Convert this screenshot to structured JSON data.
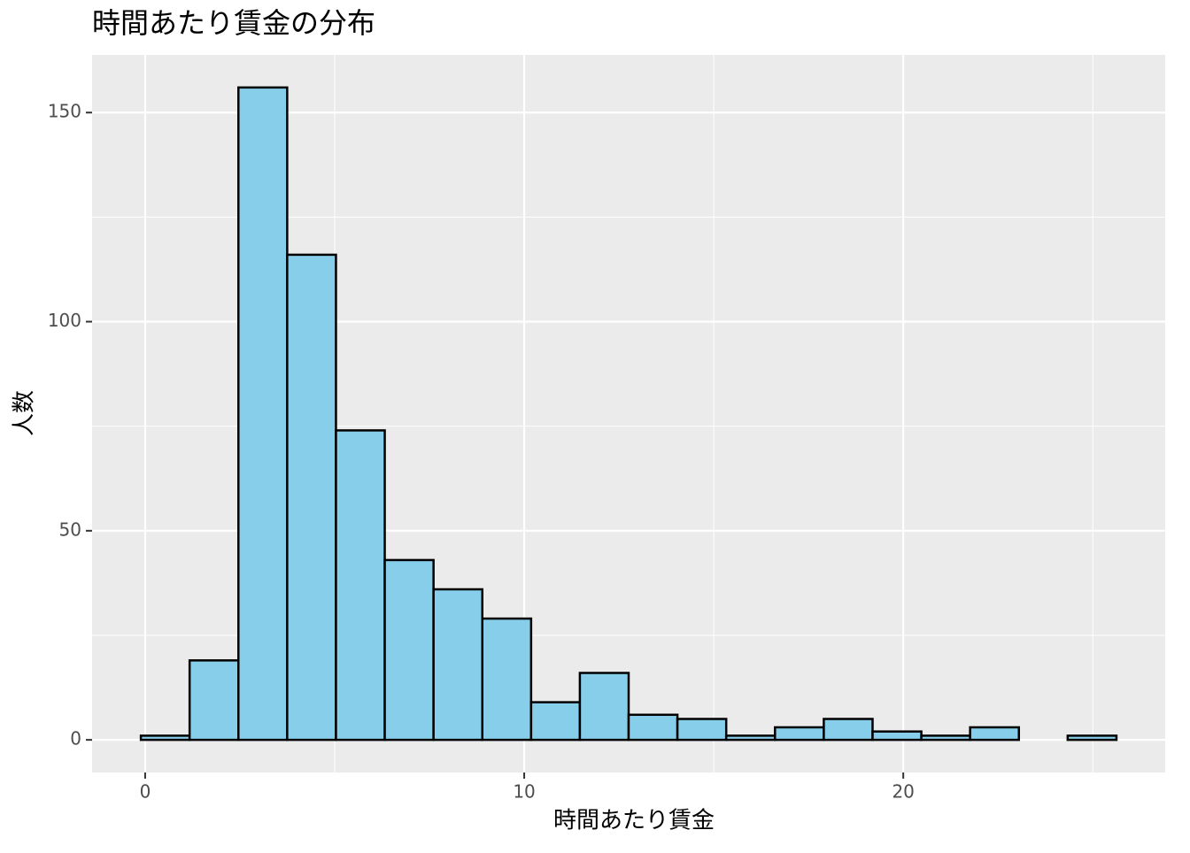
{
  "chart_data": {
    "type": "histogram",
    "title": "時間あたり賃金の分布",
    "x_label": "時間あたり賃金",
    "y_label": "人数",
    "bins": [
      -0.113,
      1.173,
      2.46,
      3.747,
      5.034,
      6.321,
      7.608,
      8.895,
      10.182,
      11.468,
      12.755,
      14.042,
      15.329,
      16.616,
      17.903,
      19.19,
      20.477,
      21.763,
      23.05,
      24.337,
      25.624
    ],
    "values": [
      1,
      19,
      156,
      116,
      74,
      43,
      36,
      29,
      9,
      16,
      6,
      5,
      1,
      3,
      5,
      2,
      1,
      3,
      0,
      1
    ],
    "color": "#87ceeb",
    "edge_color": "#000000",
    "xlim": [
      -1.4,
      26.91
    ],
    "xticks": [
      0,
      10,
      20
    ],
    "x_minor_ticks": [
      5,
      15,
      25
    ],
    "ylim": [
      -7.8,
      163.8
    ],
    "yticks": [
      0,
      50,
      100,
      150
    ],
    "y_minor_ticks": [
      25,
      75,
      125
    ],
    "grid": true
  }
}
